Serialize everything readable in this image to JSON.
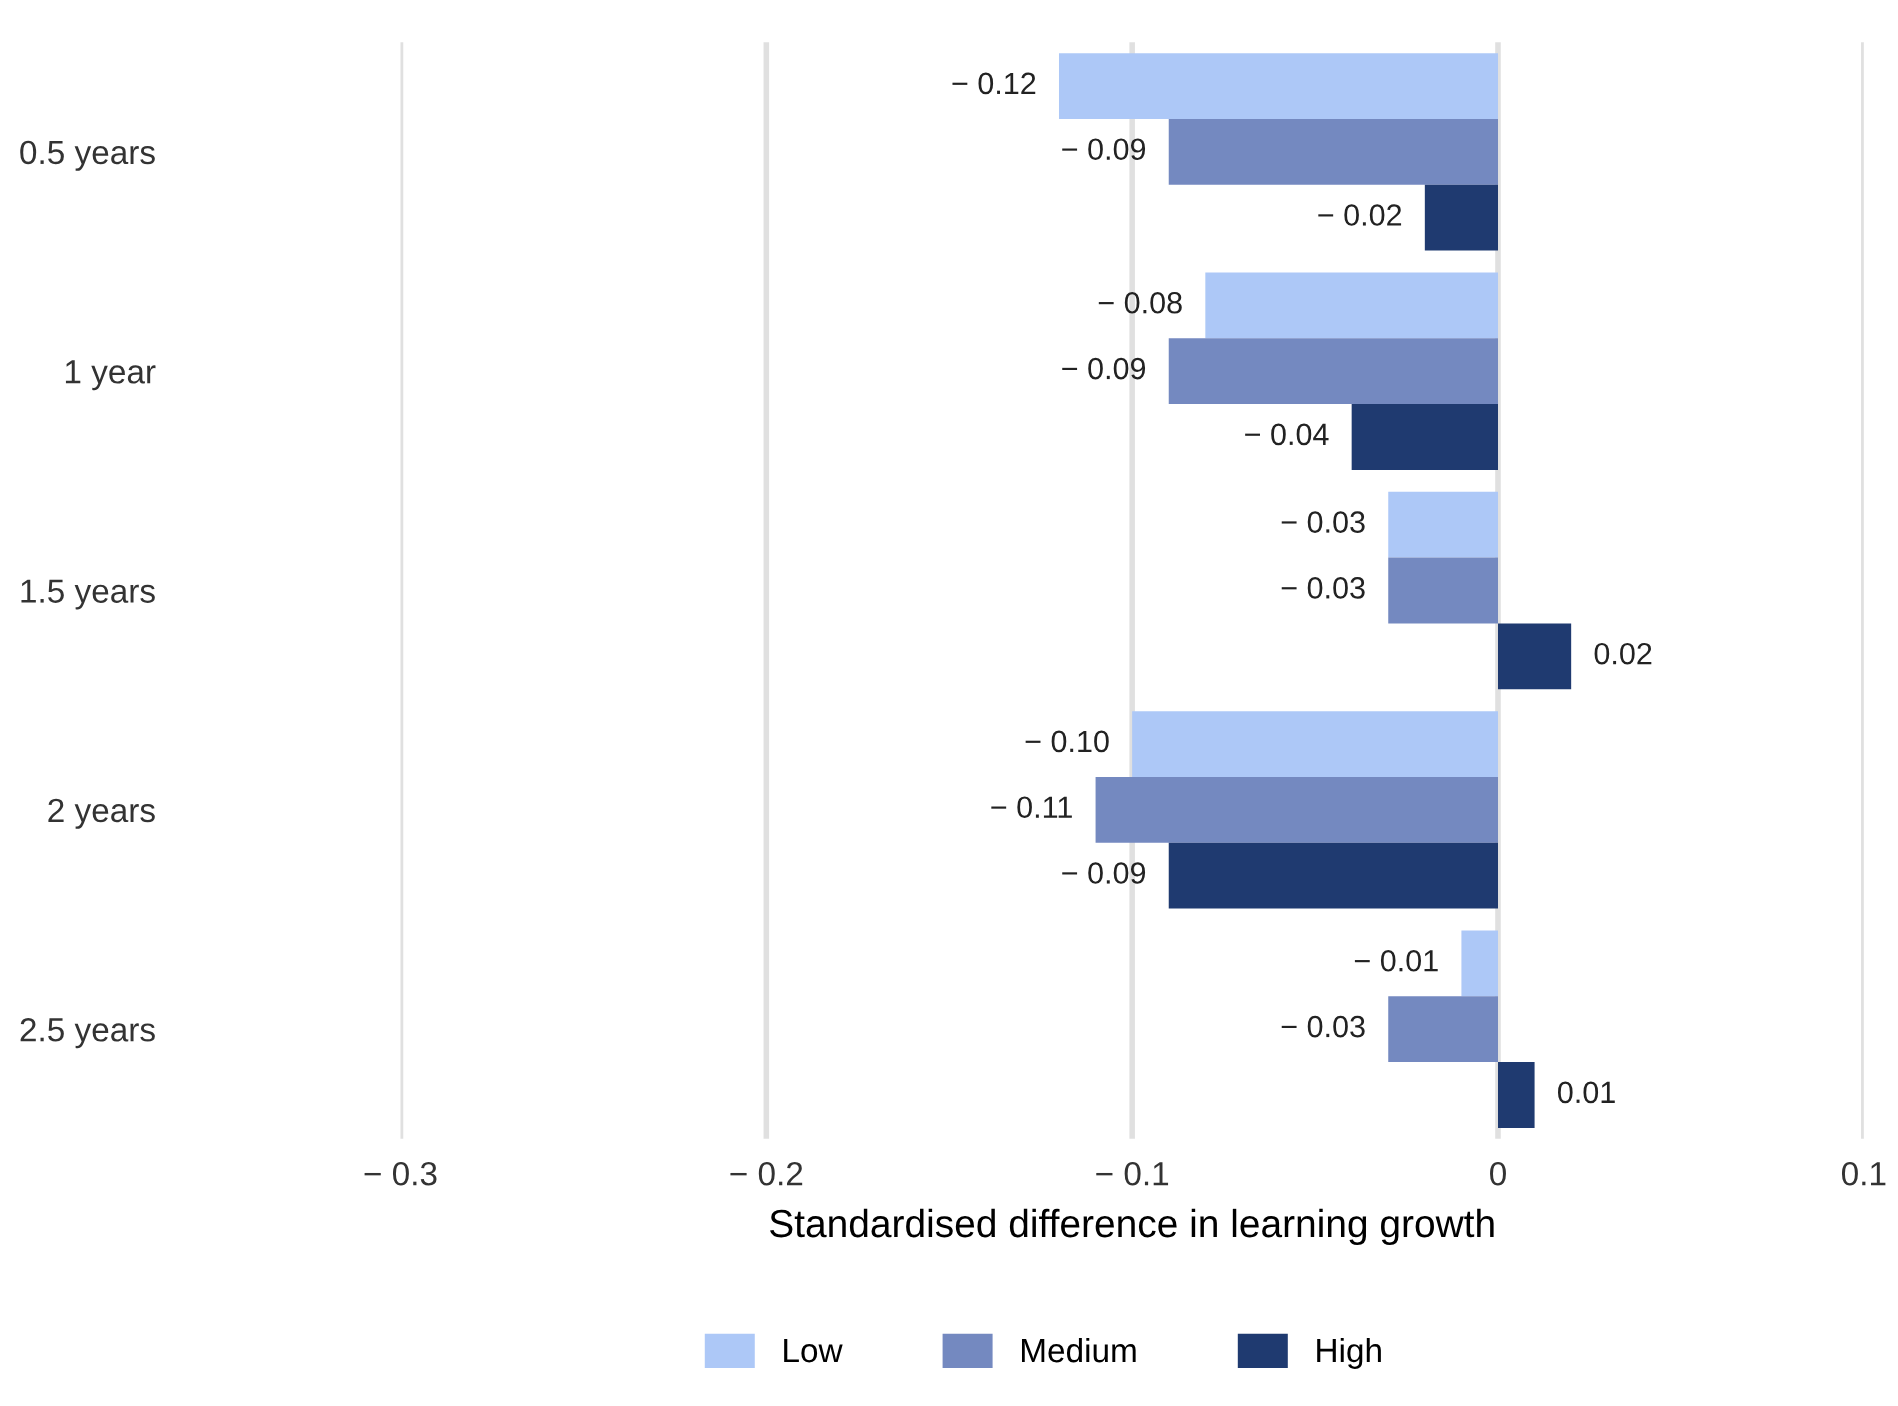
{
  "chart_data": {
    "type": "bar",
    "orientation": "horizontal",
    "xlabel": "Standardised difference in learning growth",
    "categories": [
      "0.5 years",
      "1 year",
      "1.5 years",
      "2 years",
      "2.5 years"
    ],
    "series": [
      {
        "name": "Low",
        "color": "#adc8f7",
        "values": [
          -0.12,
          -0.08,
          -0.03,
          -0.1,
          -0.01
        ],
        "value_labels": [
          "− 0.12",
          "− 0.08",
          "− 0.03",
          "− 0.10",
          "− 0.01"
        ]
      },
      {
        "name": "Medium",
        "color": "#7489c0",
        "values": [
          -0.09,
          -0.09,
          -0.03,
          -0.11,
          -0.03
        ],
        "value_labels": [
          "− 0.09",
          "− 0.09",
          "− 0.03",
          "− 0.11",
          "− 0.03"
        ]
      },
      {
        "name": "High",
        "color": "#1f3a70",
        "values": [
          -0.02,
          -0.04,
          0.02,
          -0.09,
          0.01
        ],
        "value_labels": [
          "− 0.02",
          "− 0.04",
          "0.02",
          "− 0.09",
          "0.01"
        ]
      }
    ],
    "xlim": [
      -0.3,
      0.1
    ],
    "xticks": [
      {
        "value": -0.3,
        "label": "− 0.3"
      },
      {
        "value": -0.2,
        "label": "− 0.2"
      },
      {
        "value": -0.1,
        "label": "− 0.1"
      },
      0,
      0.1
    ],
    "grid": "x",
    "legend": "bottom"
  }
}
